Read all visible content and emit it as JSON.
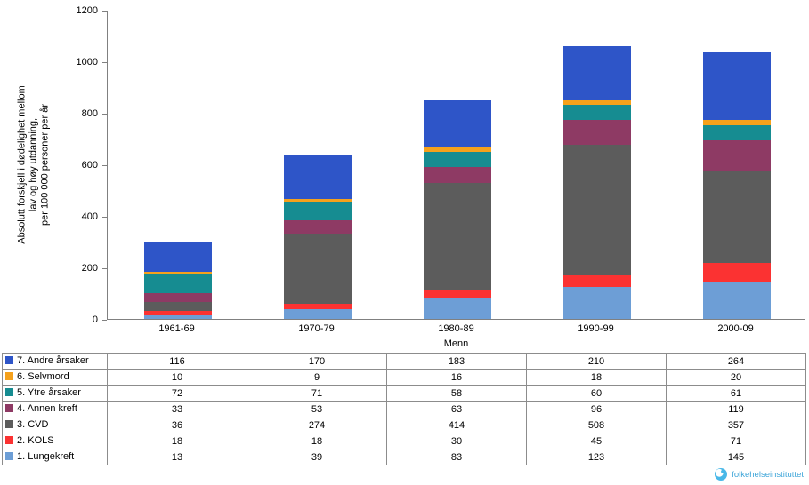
{
  "chart_data": {
    "type": "bar",
    "stacked": true,
    "categories": [
      "1961-69",
      "1970-79",
      "1980-89",
      "1990-99",
      "2000-09"
    ],
    "series": [
      {
        "name": "1. Lungekreft",
        "color": "#6d9ed6",
        "values": [
          13,
          39,
          83,
          123,
          145
        ]
      },
      {
        "name": "2. KOLS",
        "color": "#fb3232",
        "values": [
          18,
          18,
          30,
          45,
          71
        ]
      },
      {
        "name": "3. CVD",
        "color": "#5c5c5c",
        "values": [
          36,
          274,
          414,
          508,
          357
        ]
      },
      {
        "name": "4. Annen kreft",
        "color": "#8e3a64",
        "values": [
          33,
          53,
          63,
          96,
          119
        ]
      },
      {
        "name": "5. Ytre årsaker",
        "color": "#168c91",
        "values": [
          72,
          71,
          58,
          60,
          61
        ]
      },
      {
        "name": "6. Selvmord",
        "color": "#f5a11c",
        "values": [
          10,
          9,
          16,
          18,
          20
        ]
      },
      {
        "name": "7. Andre årsaker",
        "color": "#2e55c8",
        "values": [
          116,
          170,
          183,
          210,
          264
        ]
      }
    ],
    "ylabel": "Absolutt forskjell i dødelighet mellom\nlav og høy utdanning,\nper 100 000 personer per år",
    "group_label": "Menn",
    "ylim": [
      0,
      1200
    ],
    "yticks": [
      0,
      200,
      400,
      600,
      800,
      1000,
      1200
    ],
    "grid": false,
    "legend_position": "data-table-left-column",
    "table_row_order": "series reversed (7 at top, 1 at bottom)"
  },
  "footer": {
    "logo_text": "folkehelseinstituttet",
    "logo_color": "#3fa6d9"
  }
}
